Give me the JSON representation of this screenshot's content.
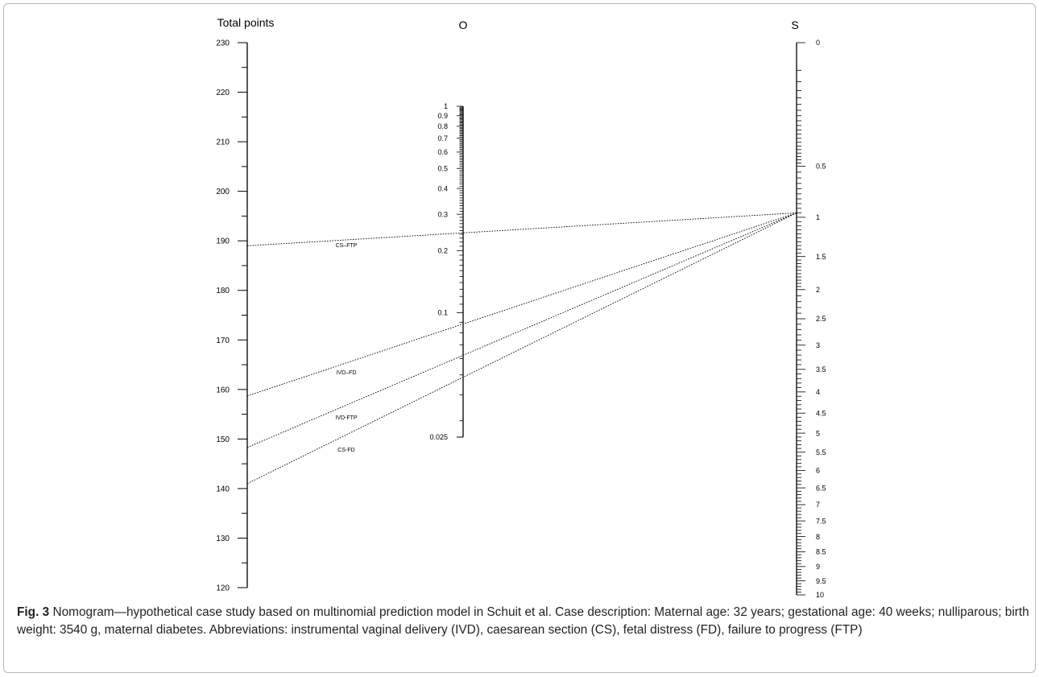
{
  "chart_data": {
    "type": "nomogram",
    "scales": [
      {
        "key": "total_points",
        "title": "Total points",
        "range": [
          120,
          230
        ],
        "ticks": [
          120,
          130,
          140,
          150,
          160,
          170,
          180,
          190,
          200,
          210,
          220,
          230
        ],
        "tick_labels": [
          "120",
          "130",
          "140",
          "150",
          "160",
          "170",
          "180",
          "190",
          "200",
          "210",
          "220",
          "230"
        ],
        "minor_step": 5,
        "label_side": "left"
      },
      {
        "key": "O",
        "title": "O",
        "scale": "log",
        "range": [
          0.025,
          1
        ],
        "ticks": [
          0.025,
          0.1,
          0.2,
          0.3,
          0.4,
          0.5,
          0.6,
          0.7,
          0.8,
          0.9,
          1
        ],
        "tick_labels": [
          "0.025",
          "0.1",
          "0.2",
          "0.3",
          "0.4",
          "0.5",
          "0.6",
          "0.7",
          "0.8",
          "0.9",
          "1"
        ],
        "label_side": "left"
      },
      {
        "key": "S",
        "title": "S",
        "range": [
          0,
          10
        ],
        "ticks": [
          0,
          0.5,
          1,
          1.5,
          2,
          2.5,
          3,
          3.5,
          4,
          4.5,
          5,
          5.5,
          6,
          6.5,
          7,
          7.5,
          8,
          8.5,
          9,
          9.5,
          10
        ],
        "tick_labels": [
          "0",
          "0.5",
          "1",
          "1.5",
          "2",
          "2.5",
          "3",
          "3.5",
          "4",
          "4.5",
          "5",
          "5.5",
          "6",
          "6.5",
          "7",
          "7.5",
          "8",
          "8.5",
          "9",
          "9.5",
          "10"
        ],
        "label_side": "right"
      }
    ],
    "lines": [
      {
        "name": "CS–FTP",
        "total_points": 189,
        "S": 0.95,
        "O": 0.26
      },
      {
        "name": "IVD–FD",
        "total_points": 158.7,
        "S": 0.95,
        "O": 0.096
      },
      {
        "name": "IVD-FTP",
        "total_points": 148.3,
        "S": 0.95,
        "O": 0.068
      },
      {
        "name": "CS-FD",
        "total_points": 141,
        "S": 0.95,
        "O": 0.053
      }
    ]
  },
  "caption": {
    "label": "Fig. 3",
    "text": " Nomogram—hypothetical case study based on multinomial prediction model in Schuit et al. Case description: Maternal age: 32 years; gestational age: 40 weeks; nulliparous; birth weight: 3540 g, maternal diabetes. Abbreviations: instrumental vaginal delivery (IVD), caesarean section (CS), fetal distress (FD), failure to progress (FTP)"
  }
}
